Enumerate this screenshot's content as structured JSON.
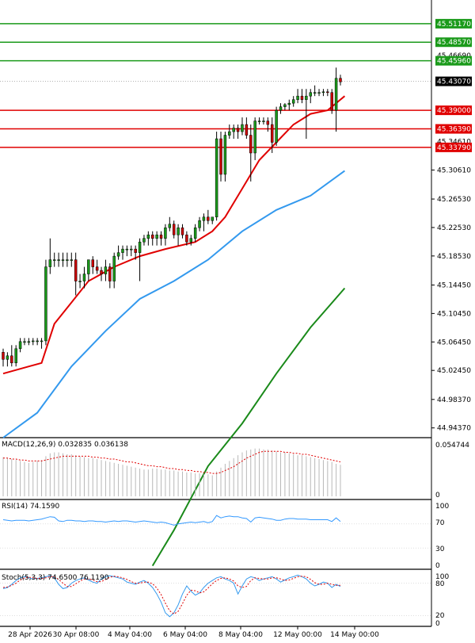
{
  "chart_data": {
    "type": "candlestick",
    "price_axis": {
      "range": [
        44.93,
        45.545
      ],
      "ticks": [
        "45.30610",
        "45.26530",
        "45.22530",
        "45.18530",
        "45.14450",
        "45.10450",
        "45.06450",
        "45.02450",
        "44.98370",
        "44.94370"
      ],
      "partial_ticks": [
        "45.46690",
        "45.34610"
      ]
    },
    "x_labels": [
      "28 Apr 2026",
      "30 Apr 08:00",
      "4 May 04:00",
      "6 May 04:00",
      "8 May 04:00",
      "12 May 00:00",
      "14 May 00:00"
    ],
    "resistance_levels": [
      {
        "value": 45.5117,
        "label": "45.51170",
        "color": "#1a9a1a"
      },
      {
        "value": 45.4857,
        "label": "45.48570",
        "color": "#1a9a1a"
      },
      {
        "value": 45.4596,
        "label": "45.45960",
        "color": "#1a9a1a"
      }
    ],
    "support_levels": [
      {
        "value": 45.39,
        "label": "45.39000",
        "color": "#e00000"
      },
      {
        "value": 45.3639,
        "label": "45.36390",
        "color": "#e00000"
      },
      {
        "value": 45.3379,
        "label": "45.33790",
        "color": "#e00000"
      }
    ],
    "current_price": {
      "value": 45.4307,
      "label": "45.43070"
    },
    "candles": [
      [
        45.05,
        45.055,
        45.03,
        45.04
      ],
      [
        45.04,
        45.05,
        45.03,
        45.045
      ],
      [
        45.045,
        45.06,
        45.03,
        45.035
      ],
      [
        45.035,
        45.06,
        45.03,
        45.055
      ],
      [
        45.055,
        45.07,
        45.05,
        45.065
      ],
      [
        45.065,
        45.07,
        45.06,
        45.065
      ],
      [
        45.065,
        45.07,
        45.06,
        45.065
      ],
      [
        45.065,
        45.07,
        45.06,
        45.066
      ],
      [
        45.066,
        45.07,
        45.06,
        45.066
      ],
      [
        45.065,
        45.07,
        45.055,
        45.066
      ],
      [
        45.066,
        45.18,
        45.06,
        45.17
      ],
      [
        45.17,
        45.21,
        45.16,
        45.18
      ],
      [
        45.18,
        45.19,
        45.17,
        45.18
      ],
      [
        45.18,
        45.19,
        45.17,
        45.18
      ],
      [
        45.18,
        45.19,
        45.17,
        45.18
      ],
      [
        45.18,
        45.19,
        45.17,
        45.18
      ],
      [
        45.18,
        45.19,
        45.17,
        45.18
      ],
      [
        45.18,
        45.19,
        45.13,
        45.15
      ],
      [
        45.15,
        45.16,
        45.14,
        45.15
      ],
      [
        45.15,
        45.17,
        45.14,
        45.16
      ],
      [
        45.16,
        45.18,
        45.15,
        45.18
      ],
      [
        45.18,
        45.185,
        45.16,
        45.17
      ],
      [
        45.17,
        45.18,
        45.16,
        45.165
      ],
      [
        45.165,
        45.17,
        45.15,
        45.16
      ],
      [
        45.16,
        45.18,
        45.15,
        45.17
      ],
      [
        45.17,
        45.175,
        45.14,
        45.15
      ],
      [
        45.15,
        45.19,
        45.14,
        45.185
      ],
      [
        45.185,
        45.2,
        45.18,
        45.19
      ],
      [
        45.19,
        45.2,
        45.18,
        45.195
      ],
      [
        45.195,
        45.2,
        45.185,
        45.195
      ],
      [
        45.195,
        45.2,
        45.185,
        45.195
      ],
      [
        45.195,
        45.2,
        45.18,
        45.19
      ],
      [
        45.19,
        45.21,
        45.15,
        45.205
      ],
      [
        45.205,
        45.215,
        45.2,
        45.21
      ],
      [
        45.21,
        45.22,
        45.2,
        45.215
      ],
      [
        45.215,
        45.22,
        45.2,
        45.21
      ],
      [
        45.21,
        45.22,
        45.2,
        45.215
      ],
      [
        45.215,
        45.22,
        45.2,
        45.21
      ],
      [
        45.21,
        45.23,
        45.2,
        45.225
      ],
      [
        45.225,
        45.24,
        45.22,
        45.23
      ],
      [
        45.23,
        45.235,
        45.21,
        45.215
      ],
      [
        45.215,
        45.23,
        45.2,
        45.225
      ],
      [
        45.225,
        45.23,
        45.21,
        45.215
      ],
      [
        45.215,
        45.22,
        45.2,
        45.205
      ],
      [
        45.205,
        45.215,
        45.2,
        45.21
      ],
      [
        45.21,
        45.23,
        45.205,
        45.225
      ],
      [
        45.225,
        45.24,
        45.22,
        45.235
      ],
      [
        45.235,
        45.245,
        45.22,
        45.24
      ],
      [
        45.24,
        45.25,
        45.23,
        45.235
      ],
      [
        45.235,
        45.24,
        45.23,
        45.24
      ],
      [
        45.24,
        45.36,
        45.235,
        45.35
      ],
      [
        45.35,
        45.36,
        45.29,
        45.3
      ],
      [
        45.3,
        45.36,
        45.29,
        45.355
      ],
      [
        45.355,
        45.37,
        45.35,
        45.36
      ],
      [
        45.36,
        45.37,
        45.35,
        45.365
      ],
      [
        45.365,
        45.37,
        45.35,
        45.36
      ],
      [
        45.36,
        45.38,
        45.355,
        45.37
      ],
      [
        45.37,
        45.38,
        45.35,
        45.355
      ],
      [
        45.355,
        45.37,
        45.29,
        45.33
      ],
      [
        45.33,
        45.38,
        45.32,
        45.375
      ],
      [
        45.375,
        45.38,
        45.37,
        45.375
      ],
      [
        45.375,
        45.38,
        45.37,
        45.375
      ],
      [
        45.375,
        45.38,
        45.36,
        45.37
      ],
      [
        45.37,
        45.38,
        45.33,
        45.345
      ],
      [
        45.345,
        45.395,
        45.34,
        45.39
      ],
      [
        45.39,
        45.4,
        45.385,
        45.395
      ],
      [
        45.395,
        45.4,
        45.39,
        45.398
      ],
      [
        45.398,
        45.405,
        45.39,
        45.4
      ],
      [
        45.4,
        45.41,
        45.395,
        45.405
      ],
      [
        45.405,
        45.42,
        45.4,
        45.41
      ],
      [
        45.41,
        45.42,
        45.4,
        45.405
      ],
      [
        45.405,
        45.42,
        45.35,
        45.41
      ],
      [
        45.41,
        45.42,
        45.4,
        45.415
      ],
      [
        45.415,
        45.425,
        45.41,
        45.415
      ],
      [
        45.415,
        45.42,
        45.41,
        45.415
      ],
      [
        45.415,
        45.42,
        45.41,
        45.416
      ],
      [
        45.416,
        45.42,
        45.41,
        45.415
      ],
      [
        45.415,
        45.42,
        45.385,
        45.39
      ],
      [
        45.39,
        45.45,
        45.36,
        45.435
      ],
      [
        45.435,
        45.44,
        45.425,
        45.43
      ]
    ],
    "ma_red": [
      [
        0,
        45.02
      ],
      [
        6,
        45.03
      ],
      [
        9,
        45.035
      ],
      [
        12,
        45.09
      ],
      [
        16,
        45.12
      ],
      [
        20,
        45.15
      ],
      [
        26,
        45.17
      ],
      [
        32,
        45.185
      ],
      [
        38,
        45.195
      ],
      [
        45,
        45.205
      ],
      [
        49,
        45.22
      ],
      [
        52,
        45.24
      ],
      [
        56,
        45.28
      ],
      [
        60,
        45.32
      ],
      [
        64,
        45.345
      ],
      [
        68,
        45.37
      ],
      [
        72,
        45.385
      ],
      [
        76,
        45.39
      ],
      [
        80,
        45.41
      ]
    ],
    "ma_blue": [
      [
        0,
        44.93
      ],
      [
        8,
        44.965
      ],
      [
        16,
        45.03
      ],
      [
        24,
        45.08
      ],
      [
        32,
        45.125
      ],
      [
        40,
        45.15
      ],
      [
        48,
        45.18
      ],
      [
        56,
        45.22
      ],
      [
        64,
        45.25
      ],
      [
        72,
        45.27
      ],
      [
        80,
        45.305
      ]
    ],
    "ma_green": [
      [
        35,
        44.75
      ],
      [
        40,
        44.8
      ],
      [
        48,
        44.89
      ],
      [
        56,
        44.95
      ],
      [
        64,
        45.02
      ],
      [
        72,
        45.085
      ],
      [
        80,
        45.14
      ]
    ],
    "macd": {
      "label": "MACD(12,26,9) 0.032835 0.036138",
      "range": [
        0.0,
        0.054744
      ],
      "axis_labels": [
        "0.054744",
        "0"
      ],
      "histogram": [
        0.041,
        0.04,
        0.039,
        0.038,
        0.037,
        0.036,
        0.035,
        0.036,
        0.037,
        0.038,
        0.042,
        0.045,
        0.046,
        0.046,
        0.045,
        0.044,
        0.044,
        0.043,
        0.042,
        0.041,
        0.04,
        0.04,
        0.039,
        0.038,
        0.037,
        0.036,
        0.035,
        0.034,
        0.033,
        0.032,
        0.031,
        0.03,
        0.029,
        0.028,
        0.028,
        0.029,
        0.029,
        0.028,
        0.028,
        0.027,
        0.027,
        0.026,
        0.026,
        0.025,
        0.025,
        0.024,
        0.024,
        0.023,
        0.023,
        0.022,
        0.026,
        0.03,
        0.034,
        0.037,
        0.04,
        0.043,
        0.046,
        0.048,
        0.049,
        0.05,
        0.05,
        0.049,
        0.049,
        0.048,
        0.047,
        0.046,
        0.046,
        0.045,
        0.044,
        0.043,
        0.043,
        0.042,
        0.041,
        0.04,
        0.039,
        0.038,
        0.037,
        0.036,
        0.034,
        0.033
      ],
      "signal": [
        0.04,
        0.04,
        0.039,
        0.039,
        0.038,
        0.038,
        0.037,
        0.037,
        0.037,
        0.037,
        0.038,
        0.039,
        0.04,
        0.041,
        0.042,
        0.042,
        0.042,
        0.042,
        0.042,
        0.042,
        0.042,
        0.041,
        0.041,
        0.04,
        0.04,
        0.039,
        0.039,
        0.038,
        0.037,
        0.036,
        0.036,
        0.035,
        0.034,
        0.033,
        0.032,
        0.032,
        0.031,
        0.031,
        0.03,
        0.029,
        0.029,
        0.028,
        0.028,
        0.027,
        0.027,
        0.026,
        0.026,
        0.025,
        0.025,
        0.024,
        0.024,
        0.025,
        0.027,
        0.029,
        0.031,
        0.034,
        0.037,
        0.04,
        0.042,
        0.044,
        0.046,
        0.047,
        0.047,
        0.047,
        0.047,
        0.047,
        0.046,
        0.046,
        0.045,
        0.045,
        0.044,
        0.044,
        0.043,
        0.042,
        0.041,
        0.04,
        0.039,
        0.038,
        0.037,
        0.036
      ]
    },
    "rsi": {
      "label": "RSI(14) 74.1590",
      "range": [
        0,
        100
      ],
      "axis_labels": [
        "100",
        "70",
        "30",
        "0"
      ],
      "values": [
        77,
        76,
        75,
        76,
        76,
        76,
        75,
        76,
        77,
        78,
        80,
        82,
        81,
        75,
        74,
        76,
        76,
        75,
        75,
        74,
        75,
        75,
        74,
        74,
        73,
        74,
        75,
        74,
        75,
        75,
        74,
        73,
        74,
        75,
        74,
        73,
        72,
        73,
        72,
        70,
        68,
        70,
        71,
        72,
        73,
        72,
        73,
        74,
        72,
        74,
        84,
        80,
        82,
        83,
        82,
        82,
        80,
        79,
        73,
        80,
        81,
        80,
        79,
        78,
        76,
        76,
        78,
        79,
        79,
        78,
        78,
        78,
        77,
        77,
        77,
        77,
        77,
        74,
        80,
        74
      ],
      "color": "#3399ff"
    },
    "stoch": {
      "label": "Stoch(5,3,3) 74.6500 76.1190",
      "range": [
        0,
        100
      ],
      "axis_labels": [
        "100",
        "80",
        "20",
        "0"
      ],
      "k": [
        70,
        72,
        78,
        85,
        90,
        92,
        90,
        88,
        89,
        90,
        92,
        94,
        90,
        78,
        70,
        72,
        80,
        85,
        88,
        90,
        86,
        82,
        80,
        88,
        92,
        94,
        92,
        90,
        88,
        82,
        80,
        78,
        82,
        85,
        80,
        72,
        60,
        45,
        25,
        18,
        25,
        40,
        60,
        75,
        65,
        58,
        62,
        72,
        80,
        85,
        90,
        92,
        88,
        85,
        80,
        60,
        75,
        88,
        92,
        90,
        85,
        88,
        90,
        92,
        88,
        82,
        86,
        90,
        92,
        95,
        92,
        88,
        80,
        75,
        78,
        82,
        80,
        72,
        78,
        74
      ],
      "d": [
        72,
        73,
        76,
        80,
        86,
        90,
        91,
        90,
        89,
        89,
        90,
        92,
        92,
        87,
        80,
        74,
        74,
        79,
        84,
        88,
        88,
        86,
        83,
        83,
        87,
        91,
        93,
        92,
        90,
        87,
        83,
        80,
        80,
        82,
        82,
        79,
        71,
        59,
        43,
        29,
        23,
        28,
        42,
        58,
        67,
        66,
        62,
        64,
        71,
        79,
        85,
        89,
        90,
        88,
        84,
        75,
        72,
        74,
        85,
        90,
        89,
        88,
        88,
        90,
        90,
        88,
        85,
        86,
        89,
        92,
        93,
        92,
        87,
        81,
        78,
        78,
        80,
        78,
        76,
        76
      ]
    }
  }
}
